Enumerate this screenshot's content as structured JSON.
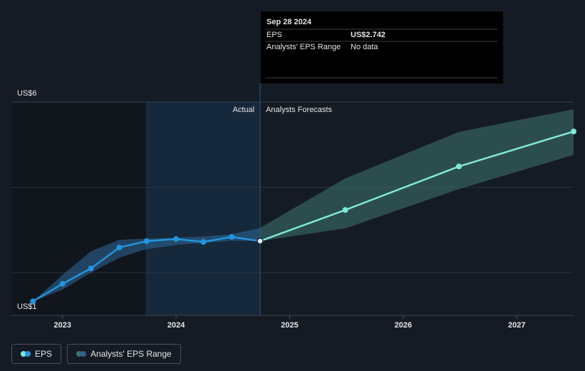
{
  "chart_data": {
    "type": "line",
    "xlim": [
      2022.55,
      2027.5
    ],
    "ylim": [
      1,
      6.0
    ],
    "xticks": [
      2023,
      2024,
      2025,
      2026,
      2027
    ],
    "yticks": [
      {
        "value": 6,
        "label": "US$6"
      },
      {
        "value": 1,
        "label": "US$1"
      }
    ],
    "grid_values": [
      4,
      2
    ],
    "actual_period": [
      2023.74,
      2024.74
    ],
    "period_labels": [
      "Actual",
      "Analysts Forecasts"
    ],
    "series": [
      {
        "name": "EPS",
        "color": "#2394df",
        "forecast_color": "#7fe8d8",
        "x": [
          2022.74,
          2023.0,
          2023.25,
          2023.5,
          2023.74,
          2024.0,
          2024.24,
          2024.49,
          2024.74,
          2025.49,
          2026.49,
          2027.5
        ],
        "values": [
          1.33,
          1.74,
          2.1,
          2.59,
          2.74,
          2.79,
          2.72,
          2.84,
          2.742,
          3.47,
          4.49,
          5.31
        ]
      },
      {
        "name": "Analysts' EPS Range",
        "color": "#2d6290",
        "forecast_color": "#3c6f6a",
        "x": [
          2022.74,
          2023.0,
          2023.25,
          2023.5,
          2023.74,
          2024.0,
          2024.24,
          2024.49,
          2024.74,
          2025.49,
          2026.49,
          2027.5
        ],
        "low": [
          1.33,
          1.6,
          2.0,
          2.35,
          2.55,
          2.65,
          2.7,
          2.75,
          2.742,
          3.04,
          3.96,
          4.76
        ],
        "high": [
          1.33,
          1.95,
          2.5,
          2.77,
          2.8,
          2.82,
          2.85,
          2.9,
          3.05,
          4.21,
          5.3,
          5.83
        ]
      }
    ],
    "tooltip": {
      "date": "Sep 28 2024",
      "rows": [
        {
          "label": "EPS",
          "value": "US$2.742"
        },
        {
          "label": "Analysts' EPS Range",
          "value": "No data"
        }
      ]
    }
  }
}
